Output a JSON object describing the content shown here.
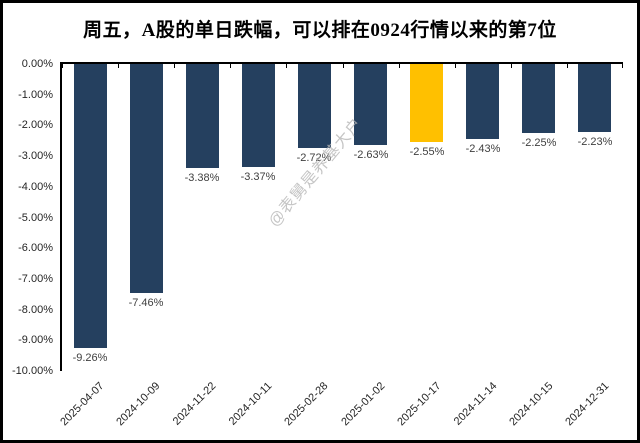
{
  "title": "周五，A股的单日跌幅，可以排在0924行情以来的第7位",
  "watermark": "@表舅是养基大户",
  "colors": {
    "bar": "#25405F",
    "highlight": "#FFC000",
    "axis": "#000000",
    "value_label": "#3F3F3F",
    "tick_label": "#262626",
    "watermark": "#B5B5B5",
    "background": "#FFFFFF",
    "frame_border": "#000000"
  },
  "chart_data": {
    "type": "bar",
    "title": "周五，A股的单日跌幅，可以排在0924行情以来的第7位",
    "categories": [
      "2025-04-07",
      "2024-10-09",
      "2024-11-22",
      "2024-10-11",
      "2025-02-28",
      "2025-01-02",
      "2025-10-17",
      "2024-11-14",
      "2024-10-15",
      "2024-12-31"
    ],
    "values": [
      -9.26,
      -7.46,
      -3.38,
      -3.37,
      -2.72,
      -2.63,
      -2.55,
      -2.43,
      -2.25,
      -2.23
    ],
    "value_labels": [
      "-9.26%",
      "-7.46%",
      "-3.38%",
      "-3.37%",
      "-2.72%",
      "-2.63%",
      "-2.55%",
      "-2.43%",
      "-2.25%",
      "-2.23%"
    ],
    "highlight_index": 6,
    "highlight_category": "2025-10-17",
    "bar_color": "#25405F",
    "highlight_color": "#FFC000",
    "xlabel": "",
    "ylabel": "",
    "ylim": [
      -10,
      0
    ],
    "y_ticks": [
      "0.00%",
      "-1.00%",
      "-2.00%",
      "-3.00%",
      "-4.00%",
      "-5.00%",
      "-6.00%",
      "-7.00%",
      "-8.00%",
      "-9.00%",
      "-10.00%"
    ],
    "grid": false,
    "legend": null,
    "x_tick_rotation": -45
  }
}
